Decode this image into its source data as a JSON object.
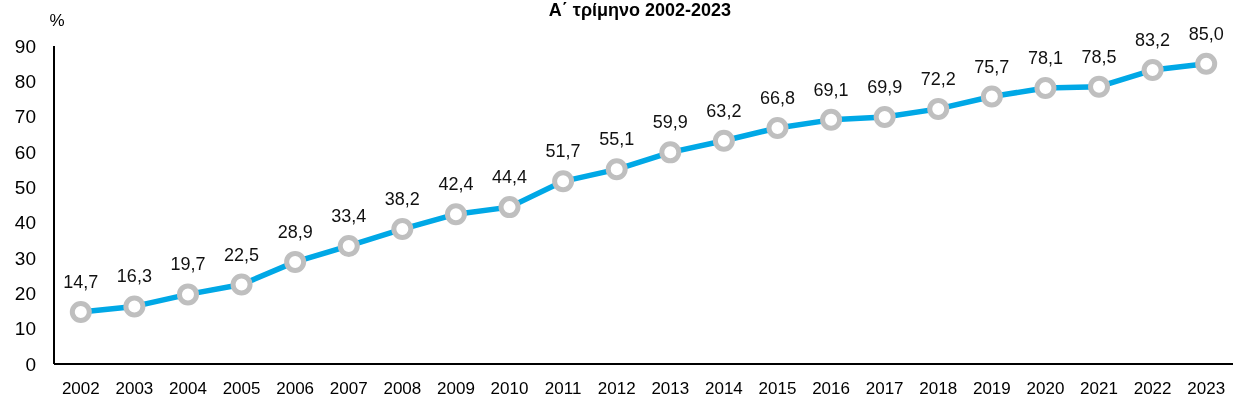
{
  "chart_data": {
    "type": "line",
    "title": "Α΄ τρίμηνο 2002-2023",
    "ylabel": "%",
    "categories": [
      "2002",
      "2003",
      "2004",
      "2005",
      "2006",
      "2007",
      "2008",
      "2009",
      "2010",
      "2011",
      "2012",
      "2013",
      "2014",
      "2015",
      "2016",
      "2017",
      "2018",
      "2019",
      "2020",
      "2021",
      "2022",
      "2023"
    ],
    "series": [
      {
        "color": "#00a8e6",
        "values": [
          14.7,
          16.3,
          19.7,
          22.5,
          28.9,
          33.4,
          38.2,
          42.4,
          44.4,
          51.7,
          55.1,
          59.9,
          63.2,
          66.8,
          69.1,
          69.9,
          72.2,
          75.7,
          78.1,
          78.5,
          83.2,
          85.0
        ],
        "value_labels": [
          "14,7",
          "16,3",
          "19,7",
          "22,5",
          "28,9",
          "33,4",
          "38,2",
          "42,4",
          "44,4",
          "51,7",
          "55,1",
          "59,9",
          "63,2",
          "66,8",
          "69,1",
          "69,9",
          "72,2",
          "75,7",
          "78,1",
          "78,5",
          "83,2",
          "85,0"
        ]
      }
    ],
    "ylim": [
      0,
      90
    ],
    "yticks": [
      0,
      10,
      20,
      30,
      40,
      50,
      60,
      70,
      80,
      90
    ],
    "grid": false,
    "marker": "circle",
    "line_style": "solid"
  }
}
